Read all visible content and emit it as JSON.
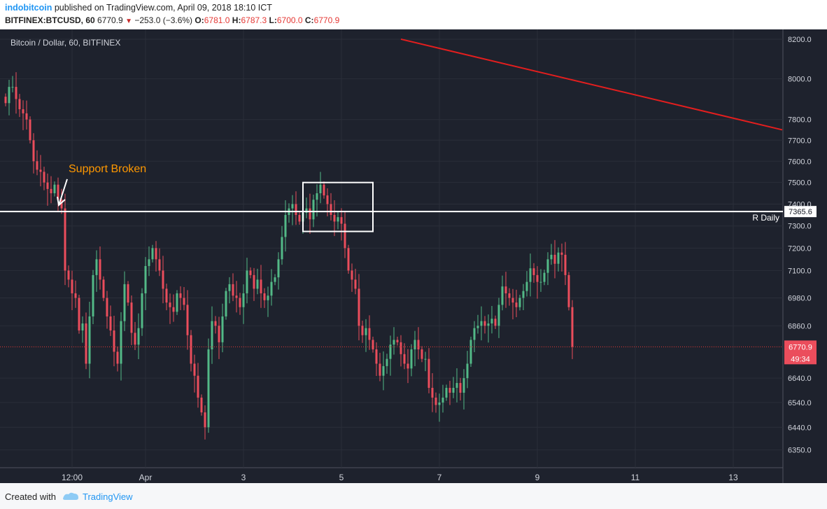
{
  "header": {
    "author": "indobitcoin",
    "published_text": "published on TradingView.com, April 09, 2018 18:10 ICT",
    "symbol": "BITFINEX:BTCUSD, 60",
    "last": "6770.9",
    "down_symbol": "▼",
    "change": "−253.0 (−3.6%)",
    "o_label": "O:",
    "o_value": "6781.0",
    "h_label": "H:",
    "h_value": "6787.3",
    "l_label": "L:",
    "l_value": "6700.0",
    "c_label": "C:",
    "c_value": "6770.9"
  },
  "footer": {
    "created_with": "Created with",
    "brand": "TradingView"
  },
  "colors": {
    "background": "#1e222d",
    "grid": "#2a2e39",
    "up": "#53b987",
    "down": "#eb4d5c",
    "trendline": "#e31e1e",
    "level": "#ffffff",
    "price_line": "#e53935"
  },
  "chart_data": {
    "type": "candlestick",
    "title": "Bitcoin / Dollar, 60, BITFINEX",
    "y_scale": "log",
    "ylim": [
      6280,
      8250
    ],
    "y_ticks": [
      8200,
      8000,
      7800,
      7700,
      7600,
      7500,
      7400,
      7300,
      7200,
      7100,
      6980,
      6860,
      6640,
      6540,
      6440,
      6350
    ],
    "y_tick_labels": [
      "8200.0",
      "8000.0",
      "7800.0",
      "7700.0",
      "7600.0",
      "7500.0",
      "7400.0",
      "7300.0",
      "7200.0",
      "7100.0",
      "6980.0",
      "6860.0",
      "6640.0",
      "6540.0",
      "6440.0",
      "6350.0"
    ],
    "xlim": [
      0,
      222
    ],
    "x_unit": "hours from first visible bar",
    "x_ticks": [
      {
        "label": "12:00",
        "hour": 19
      },
      {
        "label": "Apr",
        "hour": 40
      },
      {
        "label": "3",
        "hour": 68
      },
      {
        "label": "5",
        "hour": 96
      },
      {
        "label": "7",
        "hour": 124
      },
      {
        "label": "9",
        "hour": 152
      },
      {
        "label": "11",
        "hour": 180
      },
      {
        "label": "13",
        "hour": 208
      }
    ],
    "closes": [
      7880,
      7960,
      7960,
      7900,
      7850,
      7830,
      7800,
      7700,
      7600,
      7560,
      7550,
      7500,
      7470,
      7450,
      7490,
      7420,
      7380,
      7100,
      7060,
      7000,
      6980,
      6840,
      6870,
      6700,
      6900,
      7080,
      7150,
      7060,
      6980,
      6900,
      6840,
      6750,
      6700,
      6880,
      7040,
      6960,
      6830,
      6780,
      6850,
      7000,
      7120,
      7150,
      7200,
      7150,
      7100,
      7020,
      6960,
      6940,
      6920,
      7000,
      6980,
      6950,
      6820,
      6700,
      6650,
      6560,
      6500,
      6440,
      6760,
      6880,
      6860,
      6790,
      6900,
      7010,
      7040,
      6990,
      6980,
      6940,
      7000,
      7100,
      7080,
      7020,
      7060,
      7000,
      6970,
      6990,
      7050,
      7070,
      7150,
      7250,
      7350,
      7380,
      7400,
      7350,
      7320,
      7360,
      7380,
      7330,
      7420,
      7450,
      7490,
      7440,
      7400,
      7350,
      7320,
      7340,
      7310,
      7200,
      7100,
      7060,
      7020,
      6860,
      6820,
      6850,
      6800,
      6760,
      6700,
      6650,
      6690,
      6720,
      6780,
      6800,
      6790,
      6740,
      6700,
      6680,
      6760,
      6800,
      6760,
      6720,
      6720,
      6600,
      6560,
      6530,
      6540,
      6560,
      6600,
      6580,
      6600,
      6620,
      6580,
      6640,
      6700,
      6800,
      6850,
      6860,
      6880,
      6860,
      6870,
      6890,
      6860,
      6950,
      7030,
      7000,
      6980,
      6960,
      6940,
      6980,
      7010,
      7050,
      7110,
      7080,
      7050,
      7050,
      7090,
      7150,
      7170,
      7130,
      7180,
      7170,
      7080,
      6940,
      6770.9
    ],
    "annotations": [
      {
        "type": "text",
        "text": "Support Broken",
        "hour": 14,
        "price": 7565,
        "color": "#ff9800"
      },
      {
        "type": "arrow",
        "color": "#ffffff"
      },
      {
        "type": "horizontal_line",
        "price": 7365.6,
        "label": "R Daily",
        "tag": "7365.6"
      },
      {
        "type": "rectangle",
        "hour_start": 85,
        "hour_end": 105,
        "price_top": 7500,
        "price_bottom": 7275
      },
      {
        "type": "trend_line",
        "hour_start": 113,
        "price_start": 8200,
        "hour_end": 222,
        "price_end": 7750
      },
      {
        "type": "price_line",
        "price": 6770.9,
        "tag": "6770.9",
        "countdown": "49:34"
      }
    ]
  }
}
